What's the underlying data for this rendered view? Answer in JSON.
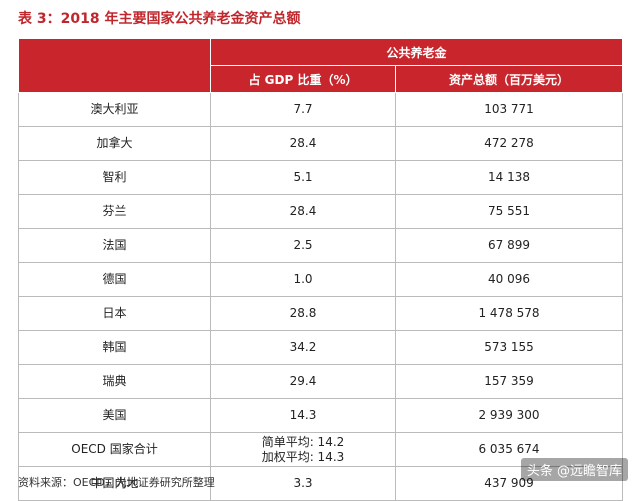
{
  "header": {
    "title": "表 3：2018 年主要国家公共养老金资产总额"
  },
  "table": {
    "group_header": "公共养老金",
    "columns": [
      "占 GDP 比重（%）",
      "资产总额（百万美元）"
    ],
    "rows": [
      [
        "澳大利亚",
        "7.7",
        "103 771"
      ],
      [
        "加拿大",
        "28.4",
        "472 278"
      ],
      [
        "智利",
        "5.1",
        "14 138"
      ],
      [
        "芬兰",
        "28.4",
        "75 551"
      ],
      [
        "法国",
        "2.5",
        "67 899"
      ],
      [
        "德国",
        "1.0",
        "40 096"
      ],
      [
        "日本",
        "28.8",
        "1 478 578"
      ],
      [
        "韩国",
        "34.2",
        "573 155"
      ],
      [
        "瑞典",
        "29.4",
        "157 359"
      ],
      [
        "美国",
        "14.3",
        "2 939 300"
      ],
      [
        "OECD 国家合计",
        [
          "简单平均: 14.2",
          "加权平均: 14.3"
        ],
        "6 035 674"
      ],
      [
        "中国内地",
        "3.3",
        "437 909"
      ]
    ]
  },
  "footer": {
    "source": "资料来源：OECD，光大证券研究所整理",
    "watermark": "头条 @远瞻智库"
  }
}
